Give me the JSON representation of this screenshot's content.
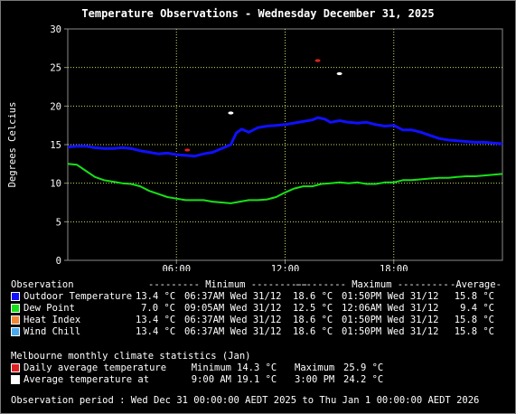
{
  "title": "Temperature Observations - Wednesday December 31, 2025",
  "colors": {
    "outdoor": "#1010ff",
    "dewpoint": "#18e018",
    "heatindex": "#f08838",
    "windchill": "#4aaaf0",
    "daily_avg": "#e02020",
    "avg_temp": "#ffffff",
    "grid": "#c8e060"
  },
  "chart_data": {
    "type": "line",
    "ylabel": "Degrees Celcius",
    "ylim": [
      0,
      30
    ],
    "yticks": [
      "0",
      "5",
      "10",
      "15",
      "20",
      "25",
      "30"
    ],
    "xlim": [
      0,
      24
    ],
    "xticks": [
      {
        "h": 6,
        "label": "06:00"
      },
      {
        "h": 12,
        "label": "12:00"
      },
      {
        "h": 18,
        "label": "18:00"
      }
    ],
    "grid": true,
    "series": [
      {
        "name": "Outdoor Temperature",
        "color": "#1010ff",
        "x": [
          0,
          0.5,
          1,
          1.5,
          2,
          2.5,
          3,
          3.5,
          4,
          4.5,
          5,
          5.5,
          6,
          6.5,
          7,
          7.5,
          8,
          8.3,
          8.7,
          9,
          9.3,
          9.6,
          10,
          10.5,
          11,
          11.5,
          12,
          12.5,
          13,
          13.5,
          13.8,
          14.2,
          14.5,
          15,
          15.5,
          16,
          16.5,
          17,
          17.5,
          18,
          18.5,
          19,
          19.5,
          20,
          20.5,
          21,
          21.5,
          22,
          22.5,
          23,
          23.5,
          24
        ],
        "y": [
          14.7,
          14.8,
          14.8,
          14.6,
          14.5,
          14.5,
          14.6,
          14.5,
          14.2,
          14.0,
          13.8,
          13.9,
          13.7,
          13.6,
          13.5,
          13.8,
          14.0,
          14.3,
          14.7,
          15.0,
          16.5,
          17.0,
          16.6,
          17.2,
          17.4,
          17.5,
          17.6,
          17.8,
          18.0,
          18.2,
          18.5,
          18.3,
          17.9,
          18.1,
          17.9,
          17.8,
          17.9,
          17.6,
          17.4,
          17.5,
          16.9,
          16.9,
          16.6,
          16.2,
          15.8,
          15.6,
          15.5,
          15.4,
          15.3,
          15.3,
          15.2,
          15.1
        ]
      },
      {
        "name": "Dew Point",
        "color": "#18e018",
        "x": [
          0,
          0.5,
          1,
          1.5,
          2,
          2.5,
          3,
          3.5,
          4,
          4.5,
          5,
          5.5,
          6,
          6.5,
          7,
          7.5,
          8,
          8.5,
          9,
          9.5,
          10,
          10.5,
          11,
          11.5,
          12,
          12.5,
          13,
          13.5,
          14,
          14.5,
          15,
          15.5,
          16,
          16.5,
          17,
          17.5,
          18,
          18.5,
          19,
          19.5,
          20,
          20.5,
          21,
          21.5,
          22,
          22.5,
          23,
          23.5,
          24
        ],
        "y": [
          12.5,
          12.4,
          11.6,
          10.8,
          10.4,
          10.2,
          10.0,
          9.9,
          9.6,
          9.0,
          8.6,
          8.2,
          8.0,
          7.8,
          7.8,
          7.8,
          7.6,
          7.5,
          7.4,
          7.6,
          7.8,
          7.8,
          7.9,
          8.2,
          8.8,
          9.3,
          9.6,
          9.6,
          9.9,
          10.0,
          10.1,
          10.0,
          10.1,
          9.9,
          9.9,
          10.1,
          10.1,
          10.4,
          10.4,
          10.5,
          10.6,
          10.7,
          10.7,
          10.8,
          10.9,
          10.9,
          11.0,
          11.1,
          11.2
        ]
      }
    ],
    "markers": [
      {
        "kind": "daily_avg_min",
        "x": 6.6,
        "y": 14.3,
        "color": "#e02020"
      },
      {
        "kind": "daily_avg_max",
        "x": 13.8,
        "y": 25.9,
        "color": "#e02020"
      },
      {
        "kind": "avg_temp_min",
        "x": 9.0,
        "y": 19.1,
        "color": "#ffffff"
      },
      {
        "kind": "avg_temp_max",
        "x": 15.0,
        "y": 24.2,
        "color": "#ffffff"
      }
    ]
  },
  "table": {
    "header": {
      "observation": "Observation",
      "minimum": "--------- Minimum ----------",
      "maximum": "--------- Maximum ---------",
      "average": "-Average-"
    },
    "rows": [
      {
        "name": "Outdoor Temperature",
        "color": "#1010ff",
        "min": "13.4 °C",
        "min_time": "06:37AM Wed 31/12",
        "max": "18.6 °C",
        "max_time": "01:50PM Wed 31/12",
        "avg": "15.8 °C"
      },
      {
        "name": "Dew Point",
        "color": "#18e018",
        "min": "7.0 °C",
        "min_time": "09:05AM Wed 31/12",
        "max": "12.5 °C",
        "max_time": "12:06AM Wed 31/12",
        "avg": "9.4 °C"
      },
      {
        "name": "Heat Index",
        "color": "#f08838",
        "min": "13.4 °C",
        "min_time": "06:37AM Wed 31/12",
        "max": "18.6 °C",
        "max_time": "01:50PM Wed 31/12",
        "avg": "15.8 °C"
      },
      {
        "name": "Wind Chill",
        "color": "#4aaaf0",
        "min": "13.4 °C",
        "min_time": "06:37AM Wed 31/12",
        "max": "18.6 °C",
        "max_time": "01:50PM Wed 31/12",
        "avg": "15.8 °C"
      }
    ]
  },
  "climate": {
    "heading": "Melbourne monthly climate statistics (Jan)",
    "rows": [
      {
        "name": "Daily average temperature",
        "color": "#e02020",
        "min_label": "Minimum",
        "min": "14.3 °C",
        "max_label": "Maximum",
        "max": "25.9 °C"
      },
      {
        "name": "Average temperature at",
        "color": "#ffffff",
        "min_label": "9:00 AM",
        "min": "19.1 °C",
        "max_label": "3:00 PM",
        "max": "24.2 °C"
      }
    ]
  },
  "period": "Observation period : Wed Dec 31 00:00:00 AEDT 2025 to Thu Jan 1 00:00:00 AEDT 2026"
}
